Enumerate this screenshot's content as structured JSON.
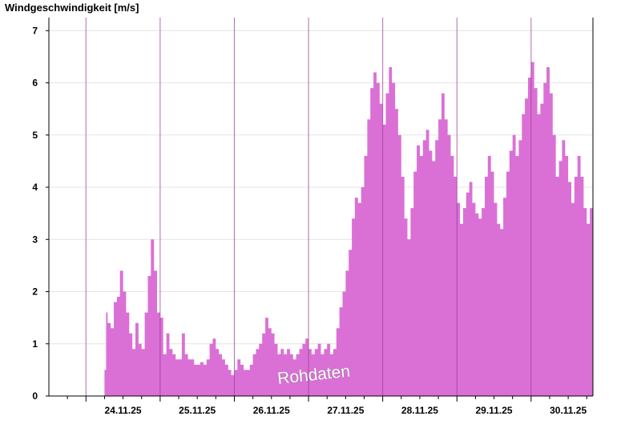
{
  "chart_data": {
    "type": "area",
    "title": "Windgeschwindigkeit [m/s]",
    "ylabel": "Windgeschwindigkeit [m/s]",
    "xlabel": "",
    "ylim": [
      0,
      7.25
    ],
    "y_ticks": [
      0,
      1,
      2,
      3,
      4,
      5,
      6,
      7
    ],
    "x_range": [
      "2025-11-23 12:00",
      "2025-11-30 20:00"
    ],
    "x_tick_labels": [
      "24.11.25",
      "25.11.25",
      "26.11.25",
      "27.11.25",
      "28.11.25",
      "29.11.25",
      "30.11.25"
    ],
    "grid": true,
    "legend": "none",
    "annotation": "Rohdaten",
    "fill_color": "#da70d6",
    "series": [
      {
        "x": [
          "2025-11-24 06:00",
          "2025-11-24 06:30",
          "2025-11-24 07:00",
          "2025-11-24 08:00",
          "2025-11-24 09:00",
          "2025-11-24 10:00",
          "2025-11-24 11:00",
          "2025-11-24 12:00",
          "2025-11-24 13:00",
          "2025-11-24 14:00",
          "2025-11-24 15:00",
          "2025-11-24 16:00",
          "2025-11-24 17:00",
          "2025-11-24 18:00",
          "2025-11-24 19:00",
          "2025-11-24 20:00",
          "2025-11-24 21:00",
          "2025-11-24 22:00",
          "2025-11-24 23:00",
          "2025-11-25 00:00",
          "2025-11-25 01:00",
          "2025-11-25 02:00",
          "2025-11-25 03:00",
          "2025-11-25 04:00",
          "2025-11-25 05:00",
          "2025-11-25 06:00",
          "2025-11-25 07:00",
          "2025-11-25 08:00",
          "2025-11-25 09:00",
          "2025-11-25 10:00",
          "2025-11-25 11:00",
          "2025-11-25 12:00",
          "2025-11-25 13:00",
          "2025-11-25 14:00",
          "2025-11-25 15:00",
          "2025-11-25 16:00",
          "2025-11-25 17:00",
          "2025-11-25 18:00",
          "2025-11-25 19:00",
          "2025-11-25 20:00",
          "2025-11-25 21:00",
          "2025-11-25 22:00",
          "2025-11-25 23:00",
          "2025-11-26 00:00",
          "2025-11-26 01:00",
          "2025-11-26 02:00",
          "2025-11-26 03:00",
          "2025-11-26 04:00",
          "2025-11-26 05:00",
          "2025-11-26 06:00",
          "2025-11-26 07:00",
          "2025-11-26 08:00",
          "2025-11-26 09:00",
          "2025-11-26 10:00",
          "2025-11-26 11:00",
          "2025-11-26 12:00",
          "2025-11-26 13:00",
          "2025-11-26 14:00",
          "2025-11-26 15:00",
          "2025-11-26 16:00",
          "2025-11-26 17:00",
          "2025-11-26 18:00",
          "2025-11-26 19:00",
          "2025-11-26 20:00",
          "2025-11-26 21:00",
          "2025-11-26 22:00",
          "2025-11-26 23:00",
          "2025-11-27 00:00",
          "2025-11-27 01:00",
          "2025-11-27 02:00",
          "2025-11-27 03:00",
          "2025-11-27 04:00",
          "2025-11-27 05:00",
          "2025-11-27 06:00",
          "2025-11-27 07:00",
          "2025-11-27 08:00",
          "2025-11-27 09:00",
          "2025-11-27 10:00",
          "2025-11-27 11:00",
          "2025-11-27 12:00",
          "2025-11-27 13:00",
          "2025-11-27 14:00",
          "2025-11-27 15:00",
          "2025-11-27 16:00",
          "2025-11-27 17:00",
          "2025-11-27 18:00",
          "2025-11-27 19:00",
          "2025-11-27 20:00",
          "2025-11-27 21:00",
          "2025-11-27 22:00",
          "2025-11-27 23:00",
          "2025-11-28 00:00",
          "2025-11-28 01:00",
          "2025-11-28 02:00",
          "2025-11-28 03:00",
          "2025-11-28 04:00",
          "2025-11-28 05:00",
          "2025-11-28 06:00",
          "2025-11-28 07:00",
          "2025-11-28 08:00",
          "2025-11-28 09:00",
          "2025-11-28 10:00",
          "2025-11-28 11:00",
          "2025-11-28 12:00",
          "2025-11-28 13:00",
          "2025-11-28 14:00",
          "2025-11-28 15:00",
          "2025-11-28 16:00",
          "2025-11-28 17:00",
          "2025-11-28 18:00",
          "2025-11-28 19:00",
          "2025-11-28 20:00",
          "2025-11-28 21:00",
          "2025-11-28 22:00",
          "2025-11-28 23:00",
          "2025-11-29 00:00",
          "2025-11-29 01:00",
          "2025-11-29 02:00",
          "2025-11-29 03:00",
          "2025-11-29 04:00",
          "2025-11-29 05:00",
          "2025-11-29 06:00",
          "2025-11-29 07:00",
          "2025-11-29 08:00",
          "2025-11-29 09:00",
          "2025-11-29 10:00",
          "2025-11-29 11:00",
          "2025-11-29 12:00",
          "2025-11-29 13:00",
          "2025-11-29 14:00",
          "2025-11-29 15:00",
          "2025-11-29 16:00",
          "2025-11-29 17:00",
          "2025-11-29 18:00",
          "2025-11-29 19:00",
          "2025-11-29 20:00",
          "2025-11-29 21:00",
          "2025-11-29 22:00",
          "2025-11-29 23:00",
          "2025-11-30 00:00",
          "2025-11-30 01:00",
          "2025-11-30 02:00",
          "2025-11-30 03:00",
          "2025-11-30 04:00",
          "2025-11-30 05:00",
          "2025-11-30 06:00",
          "2025-11-30 07:00",
          "2025-11-30 08:00",
          "2025-11-30 09:00",
          "2025-11-30 10:00",
          "2025-11-30 11:00",
          "2025-11-30 12:00",
          "2025-11-30 13:00",
          "2025-11-30 14:00",
          "2025-11-30 15:00",
          "2025-11-30 16:00",
          "2025-11-30 17:00",
          "2025-11-30 18:00",
          "2025-11-30 19:00",
          "2025-11-30 20:00"
        ],
        "values": [
          0.5,
          1.6,
          1.4,
          1.3,
          1.8,
          1.9,
          2.4,
          2.0,
          1.6,
          1.2,
          0.9,
          1.4,
          1.0,
          0.9,
          1.6,
          2.3,
          3.0,
          2.4,
          1.6,
          1.5,
          0.8,
          1.2,
          0.9,
          0.8,
          0.7,
          0.7,
          1.2,
          0.8,
          0.7,
          0.7,
          0.6,
          0.6,
          0.65,
          0.6,
          0.7,
          1.0,
          1.1,
          0.9,
          0.8,
          0.7,
          0.6,
          0.5,
          0.4,
          0.5,
          0.7,
          0.6,
          0.5,
          0.5,
          0.6,
          0.8,
          0.9,
          1.0,
          1.2,
          1.5,
          1.3,
          1.2,
          1.0,
          0.8,
          0.9,
          0.8,
          0.9,
          0.8,
          0.7,
          0.8,
          0.9,
          1.0,
          1.1,
          0.9,
          0.8,
          0.9,
          1.0,
          0.8,
          0.9,
          1.0,
          0.8,
          0.9,
          1.3,
          1.7,
          2.0,
          2.4,
          2.8,
          3.4,
          3.8,
          3.7,
          4.0,
          4.6,
          5.3,
          5.9,
          6.2,
          6.0,
          5.6,
          5.2,
          5.8,
          6.3,
          6.0,
          5.5,
          5.0,
          4.2,
          3.4,
          3.0,
          3.6,
          4.3,
          4.8,
          4.6,
          4.9,
          5.1,
          4.7,
          4.5,
          4.9,
          5.3,
          5.8,
          5.3,
          5.0,
          4.6,
          4.2,
          3.7,
          3.3,
          3.6,
          3.9,
          4.1,
          3.7,
          3.5,
          3.4,
          3.6,
          4.2,
          4.6,
          4.3,
          3.7,
          3.3,
          3.2,
          3.8,
          4.3,
          4.7,
          5.0,
          4.6,
          4.9,
          5.4,
          5.7,
          6.1,
          6.4,
          5.9,
          5.4,
          5.6,
          6.0,
          6.3,
          5.8,
          5.0,
          4.2,
          4.5,
          4.9,
          4.6,
          4.1,
          3.7,
          4.2,
          4.6,
          4.2,
          3.6,
          3.3,
          3.6,
          3.8
        ]
      }
    ]
  }
}
